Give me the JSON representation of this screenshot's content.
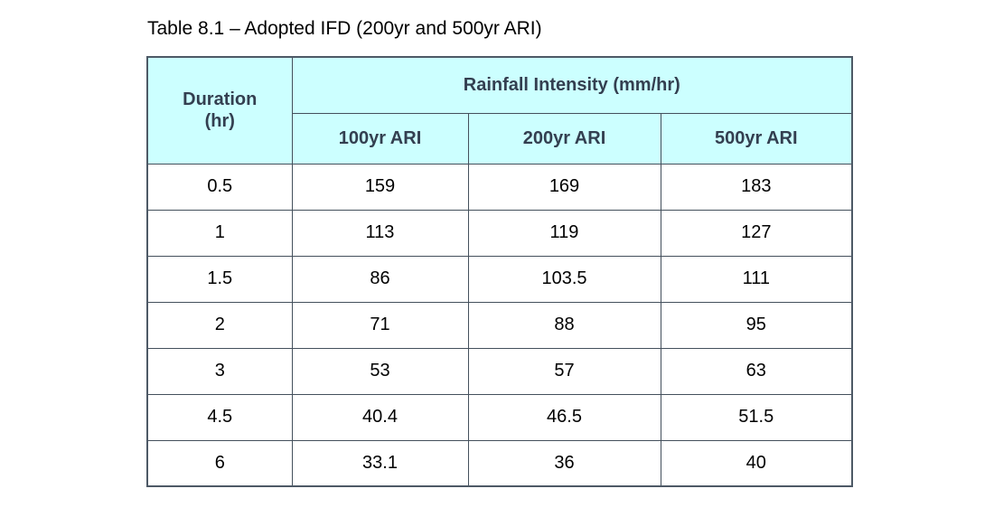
{
  "title": "Table 8.1 – Adopted IFD (200yr and 500yr ARI)",
  "table": {
    "duration_header": {
      "line1": "Duration",
      "line2": "(hr)"
    },
    "group_header": "Rainfall Intensity (mm/hr)",
    "sub_headers": [
      "100yr ARI",
      "200yr ARI",
      "500yr ARI"
    ],
    "rows": [
      {
        "duration": "0.5",
        "values": [
          "159",
          "169",
          "183"
        ]
      },
      {
        "duration": "1",
        "values": [
          "113",
          "119",
          "127"
        ]
      },
      {
        "duration": "1.5",
        "values": [
          "86",
          "103.5",
          "111"
        ]
      },
      {
        "duration": "2",
        "values": [
          "71",
          "88",
          "95"
        ]
      },
      {
        "duration": "3",
        "values": [
          "53",
          "57",
          "63"
        ]
      },
      {
        "duration": "4.5",
        "values": [
          "40.4",
          "46.5",
          "51.5"
        ]
      },
      {
        "duration": "6",
        "values": [
          "33.1",
          "36",
          "40"
        ]
      }
    ],
    "colors": {
      "header_bg": "#CCFFFF",
      "header_text": "#333F50",
      "border": "#44505C",
      "body_text": "#000000"
    }
  }
}
